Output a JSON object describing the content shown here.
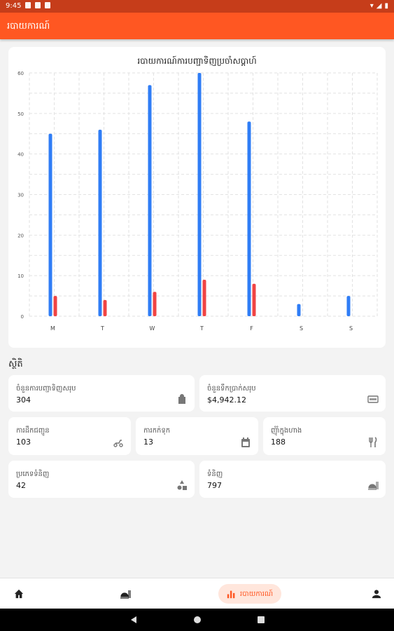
{
  "status_bar": {
    "time": "9:45"
  },
  "app_bar": {
    "title": "របាយការណ៍"
  },
  "chart_card": {
    "chart_data": {
      "type": "bar",
      "title": "របាយការណ៍ការបញ្ជាទិញប្រចាំសប្តាហ៍",
      "categories": [
        "M",
        "T",
        "W",
        "T",
        "F",
        "S",
        "S"
      ],
      "ylim": [
        0,
        60
      ],
      "yticks": [
        0,
        10,
        20,
        30,
        40,
        50,
        60
      ],
      "grid": true,
      "series": [
        {
          "values": [
            45,
            46,
            57,
            60,
            48,
            3,
            5
          ],
          "color": "#2f7df6"
        },
        {
          "values": [
            5,
            4,
            6,
            9,
            8,
            0,
            0
          ],
          "color": "#f04444"
        }
      ]
    }
  },
  "stats": {
    "section_title": "ស្ថិតិ",
    "total_orders": {
      "label": "ចំនួនការបញ្ជាទិញសរុប",
      "value": "304",
      "icon": "shopping-bag-icon"
    },
    "total_revenue": {
      "label": "ចំនួនទឹកប្រាក់សរុប",
      "value": "$4,942.12",
      "icon": "money-icon"
    },
    "delivery": {
      "label": "ការដឹកជញ្ជូន",
      "value": "103",
      "icon": "delivery-icon"
    },
    "reservations": {
      "label": "ការកក់ទុក",
      "value": "13",
      "icon": "calendar-icon"
    },
    "dine_in": {
      "label": "ញុំាំក្នុងហាង",
      "value": "188",
      "icon": "fork-knife-icon"
    },
    "categories": {
      "label": "ប្រភេទទំនិញ",
      "value": "42",
      "icon": "category-shapes-icon"
    },
    "products": {
      "label": "ទំនិញ",
      "value": "797",
      "icon": "food-icon"
    }
  },
  "bottom_nav": {
    "active_label": "របាយការណ៍",
    "items": [
      "home-icon",
      "food-icon",
      "bar-chart-icon",
      "person-icon"
    ]
  },
  "colors": {
    "primary": "#ff5722",
    "status_bar": "#c63d1a",
    "bar_primary": "#2f7df6",
    "bar_secondary": "#f04444"
  }
}
